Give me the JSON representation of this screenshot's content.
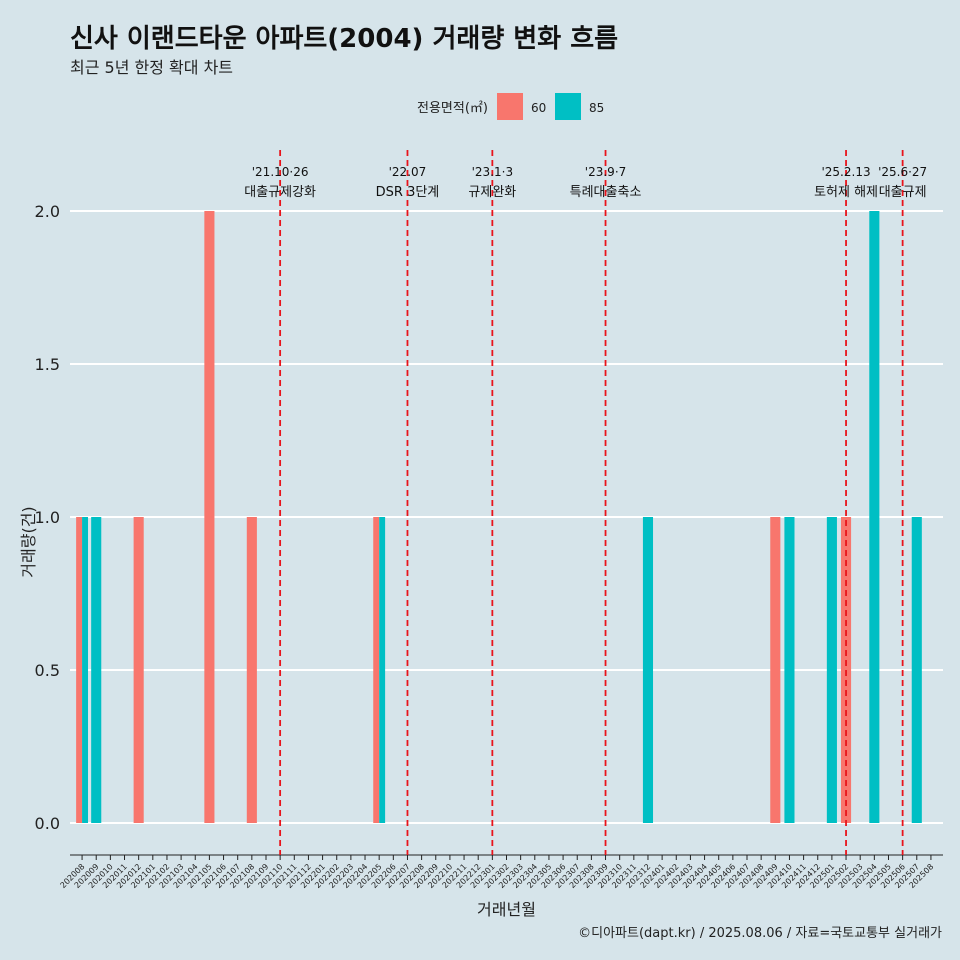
{
  "title": "신사 이랜드타운 아파트(2004) 거래량 변화 흐름",
  "subtitle": "최근 5년 한정 확대 차트",
  "caption": "©디아파트(dapt.kr) / 2025.08.06 / 자료=국토교통부 실거래가",
  "colors": {
    "background": "#d6e4ea",
    "s60": "#f8766d",
    "s85": "#00bfc4",
    "event_line": "#e8141b",
    "grid": "#ffffff"
  },
  "chart_data": {
    "type": "bar",
    "xlabel": "거래년월",
    "ylabel": "거래량(건)",
    "ylim": [
      0,
      2
    ],
    "yticks": [
      "0.0",
      "0.5",
      "1.0",
      "1.5",
      "2.0"
    ],
    "legend": {
      "title": "전용면적(㎡)",
      "position": "top"
    },
    "categories": [
      "202008",
      "202009",
      "202010",
      "202011",
      "202012",
      "202101",
      "202102",
      "202103",
      "202104",
      "202105",
      "202106",
      "202107",
      "202108",
      "202109",
      "202110",
      "202111",
      "202112",
      "202201",
      "202202",
      "202203",
      "202204",
      "202205",
      "202206",
      "202207",
      "202208",
      "202209",
      "202210",
      "202211",
      "202212",
      "202301",
      "202302",
      "202303",
      "202304",
      "202305",
      "202306",
      "202307",
      "202308",
      "202309",
      "202310",
      "202311",
      "202312",
      "202401",
      "202402",
      "202403",
      "202404",
      "202405",
      "202406",
      "202407",
      "202408",
      "202409",
      "202410",
      "202411",
      "202412",
      "202501",
      "202502",
      "202503",
      "202504",
      "202505",
      "202506",
      "202507",
      "202508"
    ],
    "series": [
      {
        "name": "60",
        "points": [
          {
            "x": "202008",
            "y": 1
          },
          {
            "x": "202012",
            "y": 1
          },
          {
            "x": "202105",
            "y": 2
          },
          {
            "x": "202108",
            "y": 1
          },
          {
            "x": "202205",
            "y": 1
          },
          {
            "x": "202409",
            "y": 1
          },
          {
            "x": "202502",
            "y": 1
          }
        ]
      },
      {
        "name": "85",
        "points": [
          {
            "x": "202008",
            "y": 1
          },
          {
            "x": "202009",
            "y": 1
          },
          {
            "x": "202205",
            "y": 1
          },
          {
            "x": "202312",
            "y": 1
          },
          {
            "x": "202410",
            "y": 1
          },
          {
            "x": "202501",
            "y": 1
          },
          {
            "x": "202504",
            "y": 2
          },
          {
            "x": "202507",
            "y": 1
          }
        ]
      }
    ],
    "events": [
      {
        "x": "202110",
        "date": "'21.10·26",
        "label": "대출규제강화"
      },
      {
        "x": "202207",
        "date": "'22.07",
        "label": "DSR 3단계"
      },
      {
        "x": "202301",
        "date": "'23.1·3",
        "label": "규제완화"
      },
      {
        "x": "202309",
        "date": "'23.9·7",
        "label": "특례대출축소"
      },
      {
        "x": "202502",
        "date": "'25.2.13",
        "label": "토허제 해제"
      },
      {
        "x": "202506",
        "date": "'25.6·27",
        "label": "대출규제"
      }
    ]
  }
}
